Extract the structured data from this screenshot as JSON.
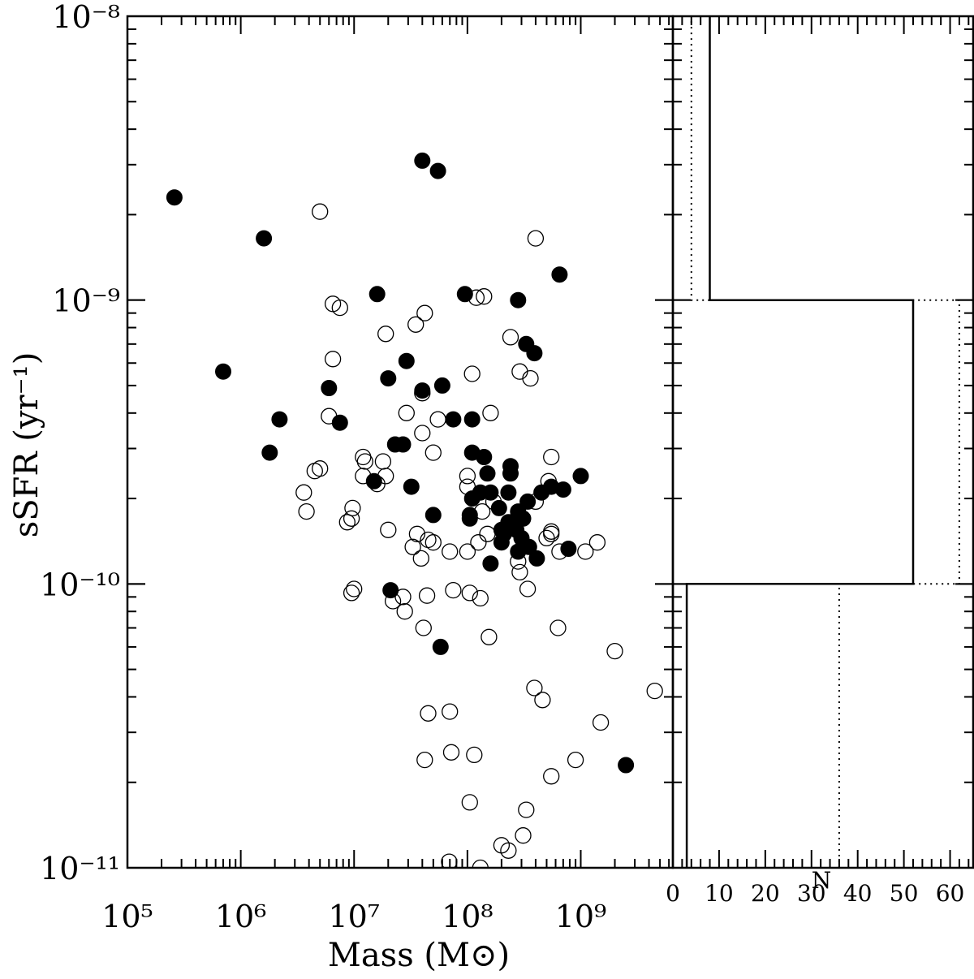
{
  "chart_data": [
    {
      "type": "scatter",
      "title": "",
      "xlabel": "Mass (M⊙)",
      "ylabel": "sSFR (yr⁻¹)",
      "xscale": "log",
      "yscale": "log",
      "xlim": [
        100000,
        6500000000
      ],
      "ylim": [
        1e-11,
        1e-08
      ],
      "x_ticks": [
        {
          "value": 100000,
          "label": "10⁵"
        },
        {
          "value": 1000000,
          "label": "10⁶"
        },
        {
          "value": 10000000,
          "label": "10⁷"
        },
        {
          "value": 100000000,
          "label": "10⁸"
        },
        {
          "value": 1000000000,
          "label": "10⁹"
        }
      ],
      "y_ticks": [
        {
          "value": 1e-11,
          "label": "10⁻¹¹"
        },
        {
          "value": 1e-10,
          "label": "10⁻¹⁰"
        },
        {
          "value": 1e-09,
          "label": "10⁻⁹"
        },
        {
          "value": 1e-08,
          "label": "10⁻⁸"
        }
      ],
      "series": [
        {
          "marker": "filled-circle",
          "color": "#000000",
          "points": [
            [
              260000.0,
              2.3e-09
            ],
            [
              1600000.0,
              1.65e-09
            ],
            [
              700000.0,
              5.6e-10
            ],
            [
              2200000.0,
              3.8e-10
            ],
            [
              1800000.0,
              2.9e-10
            ],
            [
              40000000.0,
              3.1e-09
            ],
            [
              55000000.0,
              2.85e-09
            ],
            [
              16000000.0,
              1.05e-09
            ],
            [
              95000000.0,
              1.05e-09
            ],
            [
              280000000.0,
              1e-09
            ],
            [
              650000000.0,
              1.23e-09
            ],
            [
              330000000.0,
              7e-10
            ],
            [
              390000000.0,
              6.5e-10
            ],
            [
              29000000.0,
              6.1e-10
            ],
            [
              20000000.0,
              5.3e-10
            ],
            [
              6000000.0,
              4.9e-10
            ],
            [
              40000000.0,
              4.8e-10
            ],
            [
              60000000.0,
              5e-10
            ],
            [
              7500000.0,
              3.7e-10
            ],
            [
              75000000.0,
              3.8e-10
            ],
            [
              110000000.0,
              3.8e-10
            ],
            [
              23000000.0,
              3.1e-10
            ],
            [
              27000000.0,
              3.1e-10
            ],
            [
              110000000.0,
              2.9e-10
            ],
            [
              140000000.0,
              2.8e-10
            ],
            [
              240000000.0,
              2.6e-10
            ],
            [
              15000000.0,
              2.3e-10
            ],
            [
              32000000.0,
              2.2e-10
            ],
            [
              150000000.0,
              2.45e-10
            ],
            [
              240000000.0,
              2.45e-10
            ],
            [
              1000000000.0,
              2.4e-10
            ],
            [
              110000000.0,
              2e-10
            ],
            [
              130000000.0,
              2.1e-10
            ],
            [
              160000000.0,
              2.1e-10
            ],
            [
              230000000.0,
              2.1e-10
            ],
            [
              340000000.0,
              1.95e-10
            ],
            [
              450000000.0,
              2.1e-10
            ],
            [
              550000000.0,
              2.2e-10
            ],
            [
              700000000.0,
              2.15e-10
            ],
            [
              105000000.0,
              1.75e-10
            ],
            [
              50000000.0,
              1.75e-10
            ],
            [
              105000000.0,
              1.7e-10
            ],
            [
              190000000.0,
              1.85e-10
            ],
            [
              230000000.0,
              1.65e-10
            ],
            [
              280000000.0,
              1.8e-10
            ],
            [
              310000000.0,
              1.7e-10
            ],
            [
              200000000.0,
              1.55e-10
            ],
            [
              210000000.0,
              1.5e-10
            ],
            [
              270000000.0,
              1.55e-10
            ],
            [
              300000000.0,
              1.45e-10
            ],
            [
              200000000.0,
              1.4e-10
            ],
            [
              280000000.0,
              1.3e-10
            ],
            [
              350000000.0,
              1.35e-10
            ],
            [
              160000000.0,
              1.18e-10
            ],
            [
              410000000.0,
              1.23e-10
            ],
            [
              780000000.0,
              1.33e-10
            ],
            [
              21000000.0,
              9.5e-11
            ],
            [
              58000000.0,
              6e-11
            ],
            [
              2500000000.0,
              2.3e-11
            ]
          ]
        },
        {
          "marker": "open-circle",
          "color": "#000000",
          "points": [
            [
              5000000.0,
              2.05e-09
            ],
            [
              400000000.0,
              1.65e-09
            ],
            [
              6500000.0,
              9.7e-10
            ],
            [
              7500000.0,
              9.4e-10
            ],
            [
              140000000.0,
              1.03e-09
            ],
            [
              120000000.0,
              1.02e-09
            ],
            [
              42000000.0,
              9e-10
            ],
            [
              35000000.0,
              8.2e-10
            ],
            [
              19000000.0,
              7.6e-10
            ],
            [
              240000000.0,
              7.4e-10
            ],
            [
              6500000.0,
              6.2e-10
            ],
            [
              290000000.0,
              5.6e-10
            ],
            [
              360000000.0,
              5.3e-10
            ],
            [
              110000000.0,
              5.5e-10
            ],
            [
              40000000.0,
              4.7e-10
            ],
            [
              29000000.0,
              4e-10
            ],
            [
              6000000.0,
              3.9e-10
            ],
            [
              55000000.0,
              3.8e-10
            ],
            [
              160000000.0,
              4e-10
            ],
            [
              40000000.0,
              3.4e-10
            ],
            [
              50000000.0,
              2.9e-10
            ],
            [
              12000000.0,
              2.8e-10
            ],
            [
              12500000.0,
              2.7e-10
            ],
            [
              18000000.0,
              2.7e-10
            ],
            [
              5000000.0,
              2.55e-10
            ],
            [
              4500000.0,
              2.5e-10
            ],
            [
              12000000.0,
              2.4e-10
            ],
            [
              19000000.0,
              2.4e-10
            ],
            [
              3600000.0,
              2.1e-10
            ],
            [
              16000000.0,
              2.25e-10
            ],
            [
              100000000.0,
              2.4e-10
            ],
            [
              100000000.0,
              2.2e-10
            ],
            [
              550000000.0,
              2.8e-10
            ],
            [
              520000000.0,
              2.3e-10
            ],
            [
              400000000.0,
              1.95e-10
            ],
            [
              135000000.0,
              1.8e-10
            ],
            [
              170000000.0,
              1.95e-10
            ],
            [
              3800000.0,
              1.8e-10
            ],
            [
              9500000.0,
              1.7e-10
            ],
            [
              8700000.0,
              1.65e-10
            ],
            [
              9700000.0,
              1.85e-10
            ],
            [
              20000000.0,
              1.55e-10
            ],
            [
              36000000.0,
              1.5e-10
            ],
            [
              45000000.0,
              1.43e-10
            ],
            [
              50000000.0,
              1.4e-10
            ],
            [
              33000000.0,
              1.35e-10
            ],
            [
              39000000.0,
              1.23e-10
            ],
            [
              70000000.0,
              1.3e-10
            ],
            [
              125000000.0,
              1.4e-10
            ],
            [
              100000000.0,
              1.3e-10
            ],
            [
              150000000.0,
              1.5e-10
            ],
            [
              550000000.0,
              1.53e-10
            ],
            [
              500000000.0,
              1.45e-10
            ],
            [
              550000000.0,
              1.5e-10
            ],
            [
              650000000.0,
              1.3e-10
            ],
            [
              1100000000.0,
              1.3e-10
            ],
            [
              1400000000.0,
              1.4e-10
            ],
            [
              280000000.0,
              1.2e-10
            ],
            [
              290000000.0,
              1.1e-10
            ],
            [
              9500000.0,
              9.3e-11
            ],
            [
              10000000.0,
              9.6e-11
            ],
            [
              22000000.0,
              8.7e-11
            ],
            [
              27000000.0,
              9e-11
            ],
            [
              44000000.0,
              9.1e-11
            ],
            [
              75000000.0,
              9.5e-11
            ],
            [
              105000000.0,
              9.3e-11
            ],
            [
              130000000.0,
              8.9e-11
            ],
            [
              340000000.0,
              9.6e-11
            ],
            [
              28000000.0,
              8e-11
            ],
            [
              41000000.0,
              7e-11
            ],
            [
              155000000.0,
              6.5e-11
            ],
            [
              630000000.0,
              7e-11
            ],
            [
              390000000.0,
              4.3e-11
            ],
            [
              460000000.0,
              3.9e-11
            ],
            [
              2000000000.0,
              5.8e-11
            ],
            [
              4500000000.0,
              4.2e-11
            ],
            [
              45000000.0,
              3.5e-11
            ],
            [
              70000000.0,
              3.55e-11
            ],
            [
              1500000000.0,
              3.25e-11
            ],
            [
              42000000.0,
              2.4e-11
            ],
            [
              72000000.0,
              2.55e-11
            ],
            [
              115000000.0,
              2.5e-11
            ],
            [
              900000000.0,
              2.4e-11
            ],
            [
              550000000.0,
              2.1e-11
            ],
            [
              105000000.0,
              1.7e-11
            ],
            [
              330000000.0,
              1.6e-11
            ],
            [
              310000000.0,
              1.3e-11
            ],
            [
              200000000.0,
              1.2e-11
            ],
            [
              230000000.0,
              1.15e-11
            ],
            [
              69000000.0,
              1.05e-11
            ],
            [
              130000000.0,
              1e-11
            ]
          ]
        }
      ]
    },
    {
      "type": "histogram",
      "title": "",
      "xlabel": "N",
      "ylabel": "",
      "xlim": [
        0,
        65
      ],
      "x_ticks": [
        {
          "value": 0,
          "label": "0"
        },
        {
          "value": 10,
          "label": "10"
        },
        {
          "value": 20,
          "label": "20"
        },
        {
          "value": 30,
          "label": "30"
        },
        {
          "value": 40,
          "label": "40"
        },
        {
          "value": 50,
          "label": "50"
        },
        {
          "value": 60,
          "label": "60"
        }
      ],
      "orientation": "horizontal",
      "bins_log_ssfr": [
        [
          -11,
          -10
        ],
        [
          -10,
          -9
        ],
        [
          -9,
          -8
        ]
      ],
      "series": [
        {
          "line_style": "solid",
          "counts": [
            3,
            52,
            8
          ]
        },
        {
          "line_style": "dotted",
          "counts": [
            36,
            62,
            4
          ]
        }
      ]
    }
  ]
}
